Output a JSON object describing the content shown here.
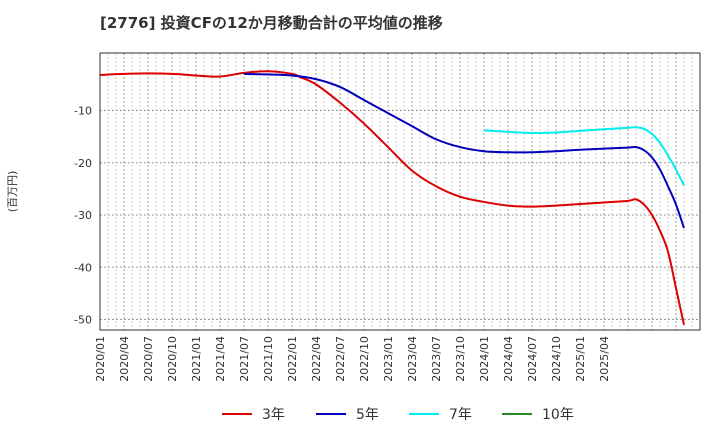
{
  "chart_data": {
    "type": "line",
    "title": "[2776]  投資CFの12か月移動合計の平均値の推移",
    "ylabel": "(百万円)",
    "xlabel": "",
    "x_ticks": [
      "2020/01",
      "2020/04",
      "2020/07",
      "2020/10",
      "2021/01",
      "2021/04",
      "2021/07",
      "2021/10",
      "2022/01",
      "2022/04",
      "2022/07",
      "2022/10",
      "2023/01",
      "2023/04",
      "2023/07",
      "2023/10",
      "2024/01",
      "2024/04",
      "2024/07",
      "2024/10",
      "2025/01",
      "2025/04"
    ],
    "y_ticks": [
      -10,
      -20,
      -30,
      -40,
      -50
    ],
    "ylim": [
      -52,
      1
    ],
    "grid": true,
    "legend_position": "bottom",
    "series": [
      {
        "name": "3年",
        "color": "#dd0000",
        "points": [
          [
            "2020/01",
            -3.2
          ],
          [
            "2020/04",
            -3.0
          ],
          [
            "2020/07",
            -2.9
          ],
          [
            "2020/10",
            -3.0
          ],
          [
            "2021/01",
            -3.3
          ],
          [
            "2021/04",
            -3.5
          ],
          [
            "2021/07",
            -2.8
          ],
          [
            "2021/10",
            -2.5
          ],
          [
            "2022/01",
            -3.0
          ],
          [
            "2022/02",
            -3.6
          ],
          [
            "2022/04",
            -5.0
          ],
          [
            "2022/07",
            -8.5
          ],
          [
            "2022/10",
            -12.5
          ],
          [
            "2023/01",
            -17.0
          ],
          [
            "2023/04",
            -21.5
          ],
          [
            "2023/07",
            -24.5
          ],
          [
            "2023/10",
            -26.5
          ],
          [
            "2024/01",
            -27.5
          ],
          [
            "2024/04",
            -28.2
          ],
          [
            "2024/07",
            -28.4
          ],
          [
            "2024/10",
            -28.2
          ],
          [
            "2025/01",
            -27.9
          ],
          [
            "2025/04",
            -27.6
          ],
          [
            "2025/07",
            -27.3
          ],
          [
            "2025/08",
            -27.0
          ],
          [
            "2025/09",
            -28.0
          ],
          [
            "2025/10",
            -30.0
          ],
          [
            "2025/11",
            -33.0
          ],
          [
            "2025/12",
            -37.0
          ],
          [
            "2026/01",
            -44.0
          ],
          [
            "2026/02",
            -51.0
          ]
        ]
      },
      {
        "name": "5年",
        "color": "#0000bb",
        "points": [
          [
            "2021/07",
            -3.0
          ],
          [
            "2021/10",
            -3.1
          ],
          [
            "2022/01",
            -3.3
          ],
          [
            "2022/04",
            -4.0
          ],
          [
            "2022/07",
            -5.5
          ],
          [
            "2022/10",
            -8.0
          ],
          [
            "2023/01",
            -10.5
          ],
          [
            "2023/04",
            -13.0
          ],
          [
            "2023/07",
            -15.5
          ],
          [
            "2023/10",
            -17.0
          ],
          [
            "2024/01",
            -17.8
          ],
          [
            "2024/04",
            -18.0
          ],
          [
            "2024/07",
            -18.0
          ],
          [
            "2024/10",
            -17.8
          ],
          [
            "2025/01",
            -17.5
          ],
          [
            "2025/04",
            -17.3
          ],
          [
            "2025/07",
            -17.1
          ],
          [
            "2025/08",
            -17.0
          ],
          [
            "2025/09",
            -17.6
          ],
          [
            "2025/10",
            -19.0
          ],
          [
            "2025/11",
            -21.3
          ],
          [
            "2025/12",
            -24.5
          ],
          [
            "2026/01",
            -28.0
          ],
          [
            "2026/02",
            -32.5
          ]
        ]
      },
      {
        "name": "7年",
        "color": "#00eeee",
        "points": [
          [
            "2024/01",
            -13.8
          ],
          [
            "2024/04",
            -14.1
          ],
          [
            "2024/07",
            -14.3
          ],
          [
            "2024/10",
            -14.2
          ],
          [
            "2025/01",
            -13.9
          ],
          [
            "2025/04",
            -13.6
          ],
          [
            "2025/07",
            -13.3
          ],
          [
            "2025/08",
            -13.2
          ],
          [
            "2025/09",
            -13.5
          ],
          [
            "2025/10",
            -14.5
          ],
          [
            "2025/11",
            -16.2
          ],
          [
            "2025/12",
            -18.6
          ],
          [
            "2026/01",
            -21.3
          ],
          [
            "2026/02",
            -24.3
          ]
        ]
      },
      {
        "name": "10年",
        "color": "#228b22",
        "points": []
      }
    ]
  }
}
